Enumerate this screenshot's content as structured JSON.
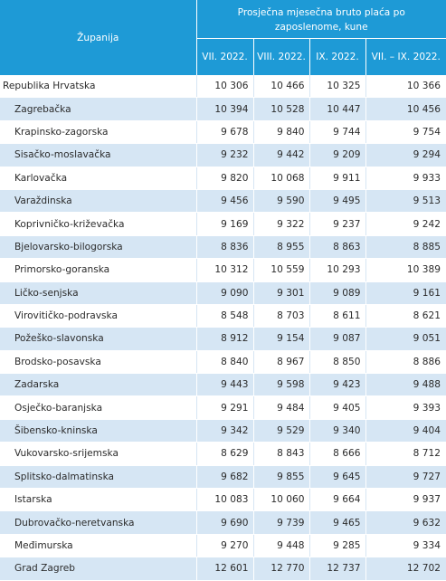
{
  "header": {
    "county_label": "Županija",
    "group_label": "Prosječna mjesečna bruto plaća po zaposlenome, kune",
    "periods": [
      "VII. 2022.",
      "VIII. 2022.",
      "IX. 2022.",
      "VII. – IX. 2022."
    ]
  },
  "rows": [
    {
      "name": "Republika Hrvatska",
      "v": [
        "10 306",
        "10 466",
        "10 325",
        "10 366"
      ]
    },
    {
      "name": "Zagrebačka",
      "v": [
        "10 394",
        "10 528",
        "10 447",
        "10 456"
      ]
    },
    {
      "name": "Krapinsko-zagorska",
      "v": [
        "9 678",
        "9 840",
        "9 744",
        "9 754"
      ]
    },
    {
      "name": "Sisačko-moslavačka",
      "v": [
        "9 232",
        "9 442",
        "9 209",
        "9 294"
      ]
    },
    {
      "name": "Karlovačka",
      "v": [
        "9 820",
        "10 068",
        "9 911",
        "9 933"
      ]
    },
    {
      "name": "Varaždinska",
      "v": [
        "9 456",
        "9 590",
        "9 495",
        "9 513"
      ]
    },
    {
      "name": "Koprivničko-križevačka",
      "v": [
        "9 169",
        "9 322",
        "9 237",
        "9 242"
      ]
    },
    {
      "name": "Bjelovarsko-bilogorska",
      "v": [
        "8 836",
        "8 955",
        "8 863",
        "8 885"
      ]
    },
    {
      "name": "Primorsko-goranska",
      "v": [
        "10 312",
        "10 559",
        "10 293",
        "10 389"
      ]
    },
    {
      "name": "Ličko-senjska",
      "v": [
        "9 090",
        "9 301",
        "9 089",
        "9 161"
      ]
    },
    {
      "name": "Virovitičko-podravska",
      "v": [
        "8 548",
        "8 703",
        "8 611",
        "8 621"
      ]
    },
    {
      "name": "Požeško-slavonska",
      "v": [
        "8 912",
        "9 154",
        "9 087",
        "9 051"
      ]
    },
    {
      "name": "Brodsko-posavska",
      "v": [
        "8 840",
        "8 967",
        "8 850",
        "8 886"
      ]
    },
    {
      "name": "Zadarska",
      "v": [
        "9 443",
        "9 598",
        "9 423",
        "9 488"
      ]
    },
    {
      "name": "Osječko-baranjska",
      "v": [
        "9 291",
        "9 484",
        "9 405",
        "9 393"
      ]
    },
    {
      "name": "Šibensko-kninska",
      "v": [
        "9 342",
        "9 529",
        "9 340",
        "9 404"
      ]
    },
    {
      "name": "Vukovarsko-srijemska",
      "v": [
        "8 629",
        "8 843",
        "8 666",
        "8 712"
      ]
    },
    {
      "name": "Splitsko-dalmatinska",
      "v": [
        "9 682",
        "9 855",
        "9 645",
        "9 727"
      ]
    },
    {
      "name": "Istarska",
      "v": [
        "10 083",
        "10 060",
        "9 664",
        "9 937"
      ]
    },
    {
      "name": "Dubrovačko-neretvanska",
      "v": [
        "9 690",
        "9 739",
        "9 465",
        "9 632"
      ]
    },
    {
      "name": "Međimurska",
      "v": [
        "9 270",
        "9 448",
        "9 285",
        "9 334"
      ]
    },
    {
      "name": "Grad Zagreb",
      "v": [
        "12 601",
        "12 770",
        "12 737",
        "12 702"
      ]
    }
  ]
}
